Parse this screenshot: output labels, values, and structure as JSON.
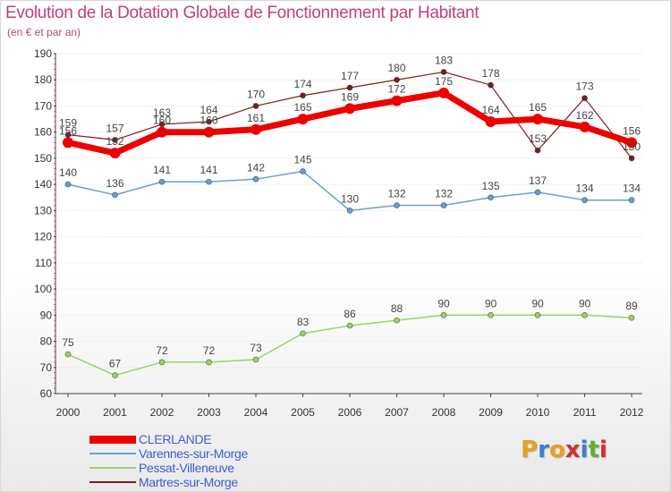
{
  "title": "Evolution de la Dotation Globale de Fonctionnement par Habitant",
  "subtitle": "(en € et par an)",
  "logo": {
    "letters": [
      "P",
      "r",
      "o",
      "x",
      "i",
      "t",
      "i"
    ],
    "colors": [
      "#e8a020",
      "#3c7fd0",
      "#e8a020",
      "#d03030",
      "#3c7fd0",
      "#60b030",
      "#d03030"
    ]
  },
  "colors": {
    "title": "#c0407a",
    "legend_text": "#3c5fcc",
    "axis": "#333333"
  },
  "chart_data": {
    "type": "line",
    "x": [
      "2000",
      "2001",
      "2002",
      "2003",
      "2004",
      "2005",
      "2006",
      "2007",
      "2008",
      "2009",
      "2010",
      "2011",
      "2012"
    ],
    "ylim": [
      60,
      190
    ],
    "yticks": [
      60,
      70,
      80,
      90,
      100,
      110,
      120,
      130,
      140,
      150,
      160,
      170,
      180,
      190
    ],
    "grid": true,
    "legend_position": "bottom-left",
    "series": [
      {
        "name": "CLERLANDE",
        "color": "#ee0000",
        "width": 7,
        "values": [
          156,
          152,
          160,
          160,
          161,
          165,
          169,
          172,
          175,
          164,
          165,
          162,
          156
        ]
      },
      {
        "name": "Varennes-sur-Morge",
        "color": "#6a9fd6",
        "width": 1.5,
        "values": [
          140,
          136,
          141,
          141,
          142,
          145,
          130,
          132,
          132,
          135,
          137,
          134,
          134
        ]
      },
      {
        "name": "Pessat-Villeneuve",
        "color": "#9ad26a",
        "width": 1.5,
        "values": [
          75,
          67,
          72,
          72,
          73,
          83,
          86,
          88,
          90,
          90,
          90,
          90,
          89
        ]
      },
      {
        "name": "Martres-sur-Morge",
        "color": "#7a1f1f",
        "width": 1.2,
        "values": [
          159,
          157,
          163,
          164,
          170,
          174,
          177,
          180,
          183,
          178,
          153,
          173,
          150
        ]
      }
    ]
  }
}
